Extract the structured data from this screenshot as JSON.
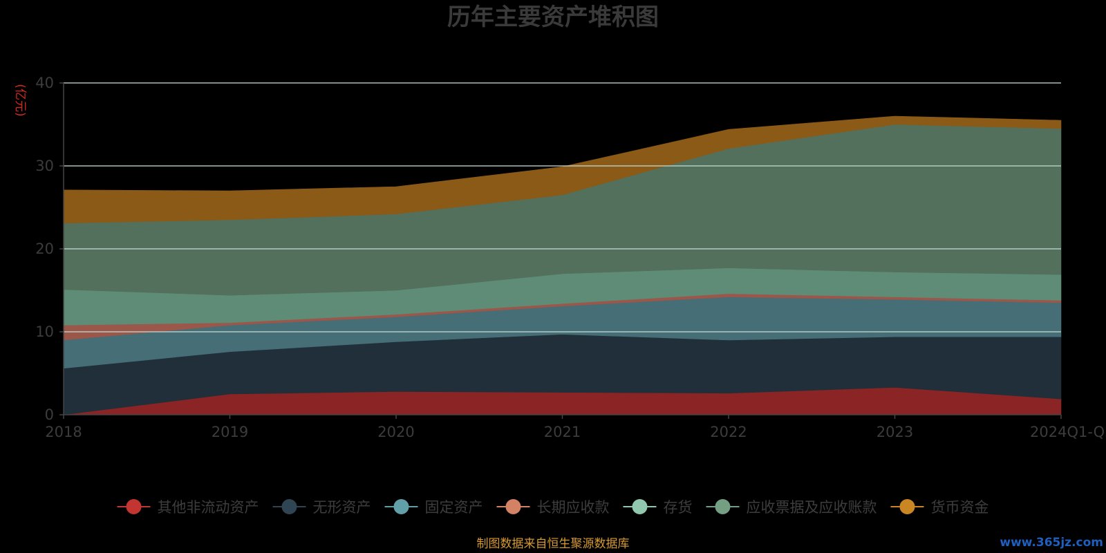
{
  "chart_data": {
    "type": "area",
    "stacked": true,
    "title": "历年主要资产堆积图",
    "ylabel": "(亿元)",
    "categories": [
      "2018",
      "2019",
      "2020",
      "2021",
      "2022",
      "2023",
      "2024Q1-Q3"
    ],
    "y_ticks": [
      "0",
      "10",
      "20",
      "30",
      "40"
    ],
    "ylim": [
      0,
      40
    ],
    "grid": true,
    "legend_position": "bottom",
    "series": [
      {
        "name": "其他非流动资产",
        "color": "#8b2424",
        "legend_color": "#c23531",
        "values": [
          0.0,
          2.5,
          2.8,
          2.7,
          2.6,
          3.3,
          1.9
        ]
      },
      {
        "name": "无形资产",
        "color": "#212f3a",
        "legend_color": "#2f4554",
        "values": [
          5.6,
          5.1,
          6.0,
          7.0,
          6.4,
          6.1,
          7.5
        ]
      },
      {
        "name": "固定资产",
        "color": "#466e76",
        "legend_color": "#61a0a8",
        "values": [
          3.4,
          3.2,
          3.0,
          3.4,
          5.2,
          4.5,
          4.1
        ]
      },
      {
        "name": "长期应收款",
        "color": "#9a574a",
        "legend_color": "#d48265",
        "values": [
          1.8,
          0.3,
          0.3,
          0.3,
          0.4,
          0.3,
          0.3
        ]
      },
      {
        "name": "存货",
        "color": "#5f8c77",
        "legend_color": "#91c7ae",
        "values": [
          4.3,
          3.3,
          2.9,
          3.6,
          3.1,
          3.0,
          3.1
        ]
      },
      {
        "name": "应收票据及应收账款",
        "color": "#52705c",
        "legend_color": "#749f83",
        "values": [
          8.0,
          9.1,
          9.2,
          9.5,
          14.4,
          17.8,
          17.6
        ]
      },
      {
        "name": "货币资金",
        "color": "#8c5a17",
        "legend_color": "#ca8622",
        "values": [
          4.0,
          3.5,
          3.3,
          3.4,
          2.3,
          1.0,
          1.0
        ]
      }
    ]
  },
  "source_text": "制图数据来自恒生聚源数据库",
  "watermark_text": "www.365jz.com"
}
